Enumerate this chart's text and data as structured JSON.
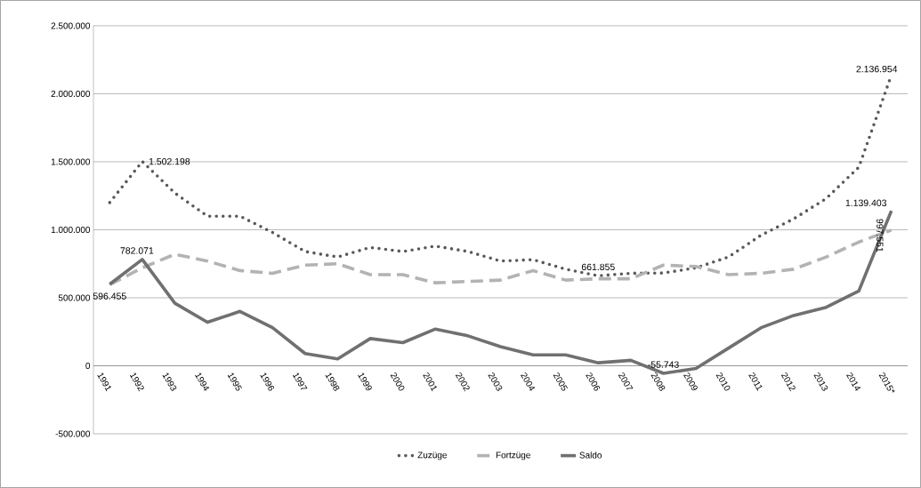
{
  "chart_data": {
    "type": "line",
    "categories": [
      "1991",
      "1992",
      "1993",
      "1994",
      "1995",
      "1996",
      "1997",
      "1998",
      "1999",
      "2000",
      "2001",
      "2002",
      "2003",
      "2004",
      "2005",
      "2006",
      "2007",
      "2008",
      "2009",
      "2010",
      "2011",
      "2012",
      "2013",
      "2014",
      "2015*"
    ],
    "ylim": [
      -500000,
      2500000
    ],
    "yticks": [
      {
        "value": -500000,
        "label": "-500.000"
      },
      {
        "value": 0,
        "label": "0"
      },
      {
        "value": 500000,
        "label": "500.000"
      },
      {
        "value": 1000000,
        "label": "1.000.000"
      },
      {
        "value": 1500000,
        "label": "1.500.000"
      },
      {
        "value": 2000000,
        "label": "2.000.000"
      },
      {
        "value": 2500000,
        "label": "2.500.000"
      }
    ],
    "grid": "y",
    "legend": "bottom",
    "series": [
      {
        "name": "Zuzüge",
        "color": "#595959",
        "line_style": "dotted",
        "values": [
          1200000,
          1502198,
          1270000,
          1100000,
          1100000,
          980000,
          840000,
          800000,
          870000,
          840000,
          880000,
          840000,
          770000,
          780000,
          710000,
          661855,
          680000,
          682000,
          720000,
          800000,
          960000,
          1080000,
          1230000,
          1460000,
          2136954
        ],
        "value_labels": [
          null,
          "1.502.198",
          null,
          null,
          null,
          null,
          null,
          null,
          null,
          null,
          null,
          null,
          null,
          null,
          null,
          "661.855",
          null,
          null,
          null,
          null,
          null,
          null,
          null,
          null,
          "2.136.954"
        ]
      },
      {
        "name": "Fortzüge",
        "color": "#b3b3b3",
        "line_style": "dashed",
        "values": [
          596455,
          720000,
          820000,
          770000,
          700000,
          680000,
          740000,
          750000,
          670000,
          670000,
          610000,
          620000,
          630000,
          700000,
          630000,
          640000,
          640000,
          740000,
          730000,
          670000,
          680000,
          710000,
          800000,
          910000,
          997551
        ],
        "value_labels": [
          "596.455",
          null,
          null,
          null,
          null,
          null,
          null,
          null,
          null,
          null,
          null,
          null,
          null,
          null,
          null,
          null,
          null,
          null,
          null,
          null,
          null,
          null,
          null,
          null,
          "997.551"
        ]
      },
      {
        "name": "Saldo",
        "color": "#707070",
        "line_style": "solid",
        "values": [
          600000,
          782071,
          460000,
          320000,
          400000,
          280000,
          90000,
          50000,
          200000,
          170000,
          270000,
          220000,
          140000,
          80000,
          80000,
          22000,
          40000,
          -55743,
          -20000,
          130000,
          280000,
          370000,
          430000,
          550000,
          1139403
        ],
        "value_labels": [
          null,
          "782.071",
          null,
          null,
          null,
          null,
          null,
          null,
          null,
          null,
          null,
          null,
          null,
          null,
          null,
          null,
          null,
          "-55.743",
          null,
          null,
          null,
          null,
          null,
          null,
          "1.139.403"
        ]
      }
    ]
  }
}
